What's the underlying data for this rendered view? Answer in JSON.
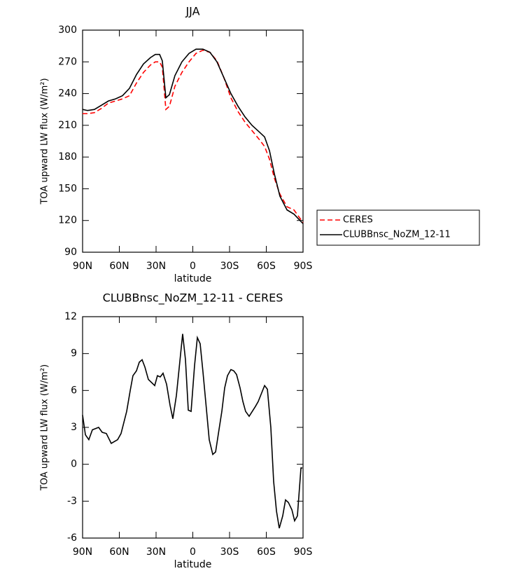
{
  "chart_data": [
    {
      "type": "line",
      "title": "JJA",
      "x_label": "latitude",
      "y_label": "TOA upward LW flux (W/m²)",
      "x": [
        90,
        86,
        80.3,
        74.6,
        68.9,
        63.1,
        57.4,
        51.7,
        46,
        40.3,
        34.6,
        30.6,
        27.1,
        24.9,
        22,
        19.1,
        14.6,
        8.9,
        3.1,
        -2.6,
        -8.3,
        -14,
        -19.7,
        -25.4,
        -31.1,
        -36.9,
        -42.6,
        -48.3,
        -54,
        -58.6,
        -62.6,
        -66.6,
        -71.1,
        -76.9,
        -82.6,
        -90
      ],
      "series": [
        {
          "name": "CERES",
          "color": "#ff0000",
          "dash": true,
          "values": [
            221,
            221,
            222,
            226,
            231,
            233,
            235,
            238,
            250,
            260,
            267,
            270,
            270,
            265,
            225,
            228,
            247,
            260,
            270,
            278,
            281,
            279,
            271,
            255,
            236,
            223,
            213,
            205,
            197,
            190,
            178,
            160,
            145,
            133,
            130,
            118
          ]
        },
        {
          "name": "CLUBBnsc_NoZM_12-11",
          "color": "#000000",
          "dash": false,
          "values": [
            225,
            224,
            225,
            229,
            233,
            235,
            238,
            245,
            258,
            268,
            274,
            277,
            277,
            271,
            236,
            239,
            257,
            270,
            278,
            282,
            282,
            279,
            270,
            255,
            240,
            228,
            218,
            210,
            204,
            199,
            186,
            164,
            143,
            130,
            126,
            117
          ]
        }
      ],
      "xlim": [
        90,
        -90
      ],
      "xticks": [
        {
          "value": 90,
          "label": "90N"
        },
        {
          "value": 60,
          "label": "60N"
        },
        {
          "value": 30,
          "label": "30N"
        },
        0,
        {
          "value": -30,
          "label": "30S"
        },
        {
          "value": -60,
          "label": "60S"
        },
        {
          "value": -90,
          "label": "90S"
        }
      ],
      "ylim": [
        90,
        300
      ],
      "yticks": [
        90,
        120,
        150,
        180,
        210,
        240,
        270,
        300
      ],
      "legend": "right"
    },
    {
      "type": "line",
      "title": "CLUBBnsc_NoZM_12-11 - CERES",
      "x_label": "latitude",
      "y_label": "TOA upward LW flux (W/m²)",
      "x": [
        90,
        87.7,
        84.9,
        82,
        76.9,
        74,
        70.6,
        66.6,
        61.4,
        58.6,
        54,
        51.1,
        48.9,
        46,
        43.7,
        41.4,
        39.1,
        36.3,
        31.1,
        28.9,
        26.6,
        24.3,
        21.4,
        18.6,
        16.3,
        13.4,
        8.3,
        6,
        3.7,
        1.4,
        -1.4,
        -3.7,
        -6,
        -8.3,
        -11.1,
        -13.4,
        -16.3,
        -18.6,
        -20.9,
        -23.7,
        -26,
        -28.3,
        -31.1,
        -33.4,
        -35.7,
        -38.6,
        -40.9,
        -43.1,
        -46,
        -51.1,
        -53.4,
        -58.6,
        -60.9,
        -63.7,
        -66,
        -68.3,
        -70.6,
        -73.4,
        -75.7,
        -78,
        -80.9,
        -83.1,
        -85.4,
        -88.3,
        -89.4
      ],
      "values": [
        4.0,
        2.4,
        2.0,
        2.8,
        3.0,
        2.6,
        2.5,
        1.7,
        2.0,
        2.5,
        4.3,
        6.0,
        7.2,
        7.6,
        8.3,
        8.5,
        7.9,
        6.9,
        6.4,
        7.2,
        7.1,
        7.4,
        6.5,
        4.8,
        3.7,
        5.6,
        10.6,
        8.5,
        4.4,
        4.3,
        8.0,
        10.3,
        9.8,
        7.5,
        4.5,
        2.0,
        0.8,
        1.0,
        2.5,
        4.3,
        6.2,
        7.2,
        7.7,
        7.6,
        7.3,
        6.2,
        5.1,
        4.3,
        3.9,
        4.7,
        5.1,
        6.4,
        6.1,
        3.0,
        -1.4,
        -3.8,
        -5.2,
        -4.2,
        -2.9,
        -3.1,
        -3.7,
        -4.6,
        -4.2,
        -0.3,
        -0.3
      ],
      "color": "#000000",
      "xlim": [
        90,
        -90
      ],
      "xticks": [
        {
          "value": 90,
          "label": "90N"
        },
        {
          "value": 60,
          "label": "60N"
        },
        {
          "value": 30,
          "label": "30N"
        },
        0,
        {
          "value": -30,
          "label": "30S"
        },
        {
          "value": -60,
          "label": "60S"
        },
        {
          "value": -90,
          "label": "90S"
        }
      ],
      "ylim": [
        -6,
        12
      ],
      "yticks": [
        -6,
        -3,
        0,
        3,
        6,
        9,
        12
      ]
    }
  ]
}
